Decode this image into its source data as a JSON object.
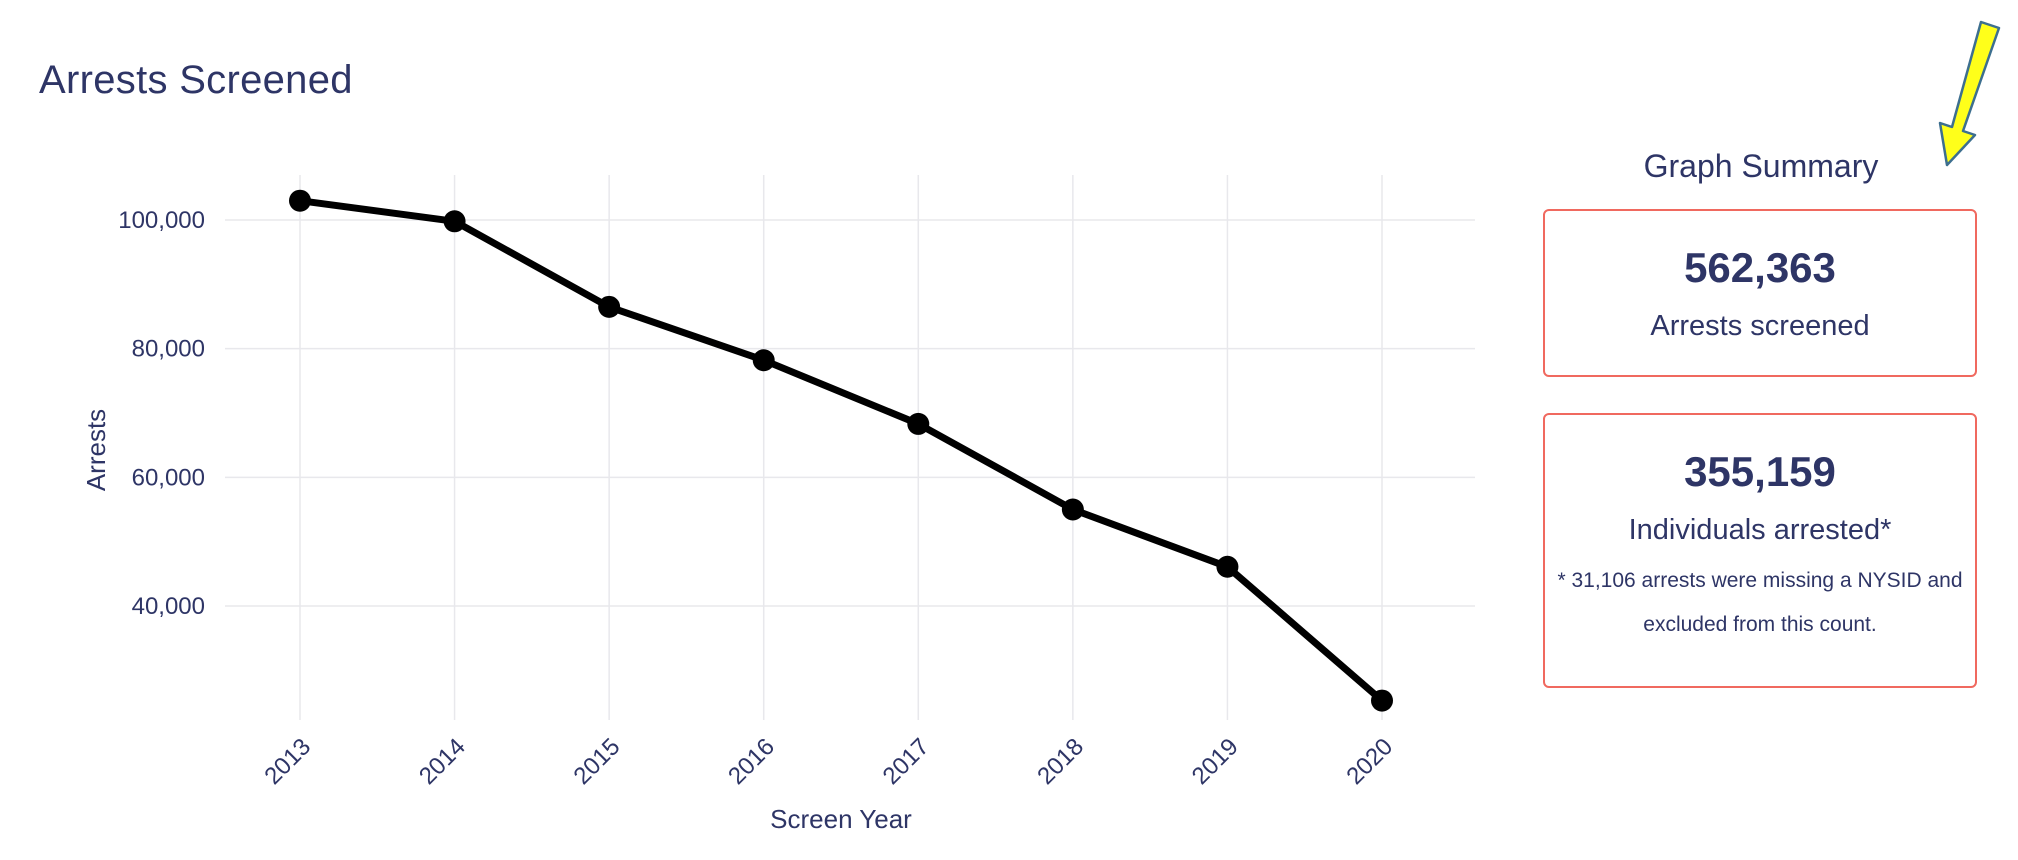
{
  "theme": {
    "text_color": "#2e3566",
    "line_color": "#000000",
    "grid_color": "#e8e8ec",
    "card_border_color": "#f0695f",
    "arrow_fill": "#ffff1a",
    "arrow_stroke": "#3d6f8f"
  },
  "page": {
    "title": "Arrests Screened"
  },
  "chart_data": {
    "type": "line",
    "title": "",
    "xlabel": "Screen Year",
    "ylabel": "Arrests",
    "x": [
      2013,
      2014,
      2015,
      2016,
      2017,
      2018,
      2019,
      2020
    ],
    "values": [
      103000,
      99800,
      86500,
      78200,
      68300,
      55000,
      46100,
      25300
    ],
    "y_ticks": [
      40000,
      60000,
      80000,
      100000
    ],
    "y_tick_labels": [
      "40,000",
      "60,000",
      "80,000",
      "100,000"
    ],
    "ylim": [
      22000,
      107000
    ],
    "grid": true,
    "legend": "none"
  },
  "summary": {
    "heading": "Graph Summary",
    "cards": [
      {
        "value": "562,363",
        "label": "Arrests screened"
      },
      {
        "value": "355,159",
        "label": "Individuals arrested*",
        "note": "* 31,106 arrests were missing a NYSID and excluded from this count."
      }
    ]
  },
  "annotation": {
    "icon": "down-left-arrow-icon"
  }
}
